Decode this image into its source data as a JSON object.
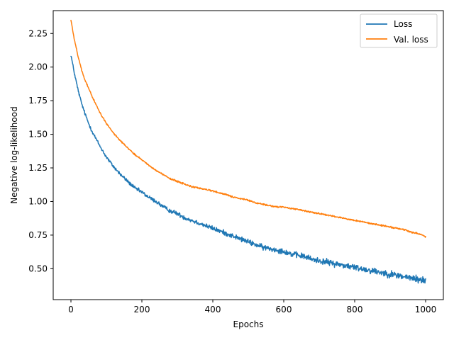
{
  "chart_data": {
    "type": "line",
    "title": "",
    "xlabel": "Epochs",
    "ylabel": "Negative log-likelihood",
    "xlim": [
      -50,
      1050
    ],
    "ylim": [
      0.27,
      2.42
    ],
    "xticks": [
      0,
      200,
      400,
      600,
      800,
      1000
    ],
    "yticks": [
      0.5,
      0.75,
      1.0,
      1.25,
      1.5,
      1.75,
      2.0,
      2.25
    ],
    "xtick_labels": [
      "0",
      "200",
      "400",
      "600",
      "800",
      "1000"
    ],
    "ytick_labels": [
      "0.50",
      "0.75",
      "1.00",
      "1.25",
      "1.50",
      "1.75",
      "2.00",
      "2.25"
    ],
    "grid": false,
    "legend_position": "top-right",
    "series": [
      {
        "name": "Loss",
        "color": "#1f77b4",
        "noise": "high",
        "x": [
          0,
          10,
          20,
          30,
          40,
          50,
          60,
          80,
          100,
          120,
          140,
          160,
          180,
          200,
          220,
          240,
          260,
          280,
          300,
          320,
          340,
          360,
          380,
          400,
          420,
          440,
          460,
          480,
          500,
          520,
          540,
          560,
          580,
          600,
          620,
          640,
          660,
          680,
          700,
          720,
          740,
          760,
          780,
          800,
          820,
          840,
          860,
          880,
          900,
          920,
          940,
          960,
          980,
          1000
        ],
        "y": [
          2.09,
          1.95,
          1.83,
          1.73,
          1.65,
          1.58,
          1.52,
          1.42,
          1.33,
          1.26,
          1.2,
          1.15,
          1.1,
          1.07,
          1.03,
          1.0,
          0.96,
          0.93,
          0.91,
          0.88,
          0.86,
          0.84,
          0.82,
          0.8,
          0.78,
          0.76,
          0.74,
          0.72,
          0.7,
          0.68,
          0.66,
          0.65,
          0.64,
          0.63,
          0.61,
          0.6,
          0.59,
          0.57,
          0.56,
          0.55,
          0.54,
          0.53,
          0.52,
          0.51,
          0.5,
          0.49,
          0.48,
          0.47,
          0.46,
          0.45,
          0.44,
          0.43,
          0.42,
          0.41
        ]
      },
      {
        "name": "Val. loss",
        "color": "#ff7f0e",
        "noise": "low",
        "x": [
          0,
          10,
          20,
          30,
          40,
          50,
          60,
          80,
          100,
          120,
          140,
          160,
          180,
          200,
          220,
          240,
          260,
          280,
          300,
          320,
          340,
          360,
          380,
          400,
          420,
          440,
          460,
          480,
          500,
          520,
          540,
          560,
          580,
          600,
          620,
          640,
          660,
          680,
          700,
          720,
          740,
          760,
          780,
          800,
          820,
          840,
          860,
          880,
          900,
          920,
          940,
          960,
          980,
          1000
        ],
        "y": [
          2.35,
          2.2,
          2.08,
          1.98,
          1.9,
          1.84,
          1.78,
          1.67,
          1.58,
          1.51,
          1.45,
          1.4,
          1.35,
          1.31,
          1.27,
          1.23,
          1.2,
          1.17,
          1.15,
          1.13,
          1.11,
          1.1,
          1.09,
          1.08,
          1.06,
          1.05,
          1.03,
          1.02,
          1.01,
          0.99,
          0.98,
          0.97,
          0.96,
          0.96,
          0.95,
          0.94,
          0.93,
          0.92,
          0.91,
          0.9,
          0.89,
          0.88,
          0.87,
          0.86,
          0.85,
          0.84,
          0.83,
          0.82,
          0.81,
          0.8,
          0.79,
          0.77,
          0.76,
          0.74
        ]
      }
    ]
  }
}
